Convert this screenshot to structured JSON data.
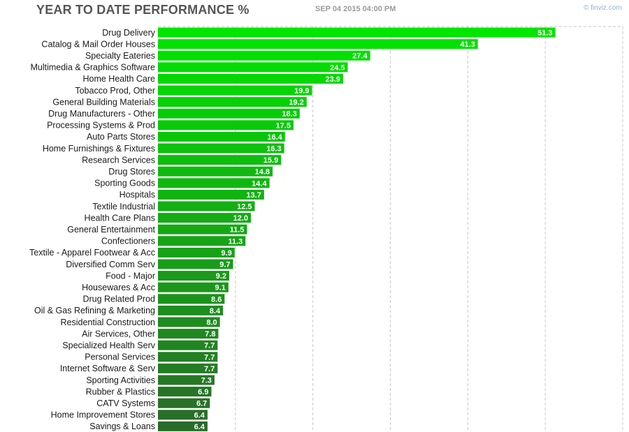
{
  "header": {
    "title": "YEAR TO DATE PERFORMANCE %",
    "timestamp": "SEP 04 2015 04:00 PM",
    "credit": "© finviz.com"
  },
  "colors": {
    "bar_top": "#00e600",
    "bar_bottom": "#2a6a2a",
    "grid": "#c8c8c8"
  },
  "chart_data": {
    "type": "bar",
    "orientation": "horizontal",
    "xlim": [
      0,
      60
    ],
    "grid": true,
    "categories": [
      "Drug Delivery",
      "Catalog & Mail Order Houses",
      "Specialty Eateries",
      "Multimedia & Graphics Software",
      "Home Health Care",
      "Tobacco Prod, Other",
      "General Building Materials",
      "Drug Manufacturers - Other",
      "Processing Systems & Prod",
      "Auto Parts Stores",
      "Home Furnishings & Fixtures",
      "Research Services",
      "Drug Stores",
      "Sporting Goods",
      "Hospitals",
      "Textile Industrial",
      "Health Care Plans",
      "General Entertainment",
      "Confectioners",
      "Textile - Apparel Footwear & Acc",
      "Diversified Comm Serv",
      "Food - Major",
      "Housewares & Acc",
      "Drug Related Prod",
      "Oil & Gas Refining & Marketing",
      "Residential Construction",
      "Air Services, Other",
      "Specialized Health Serv",
      "Personal Services",
      "Internet Software & Serv",
      "Sporting Activities",
      "Rubber & Plastics",
      "CATV Systems",
      "Home Improvement Stores",
      "Savings & Loans"
    ],
    "values": [
      51.3,
      41.3,
      27.4,
      24.5,
      23.9,
      19.9,
      19.2,
      18.3,
      17.5,
      16.4,
      16.3,
      15.9,
      14.8,
      14.4,
      13.7,
      12.5,
      12.0,
      11.5,
      11.3,
      9.9,
      9.7,
      9.2,
      9.1,
      8.6,
      8.4,
      8.0,
      7.8,
      7.7,
      7.7,
      7.7,
      7.3,
      6.9,
      6.7,
      6.4,
      6.4
    ],
    "value_labels": [
      "51.3",
      "41.3",
      "27.4",
      "24.5",
      "23.9",
      "19.9",
      "19.2",
      "18.3",
      "17.5",
      "16.4",
      "16.3",
      "15.9",
      "14.8",
      "14.4",
      "13.7",
      "12.5",
      "12.0",
      "11.5",
      "11.3",
      "9.9",
      "9.7",
      "9.2",
      "9.1",
      "8.6",
      "8.4",
      "8.0",
      "7.8",
      "7.7",
      "7.7",
      "7.7",
      "7.3",
      "6.9",
      "6.7",
      "6.4",
      "6.4"
    ]
  }
}
